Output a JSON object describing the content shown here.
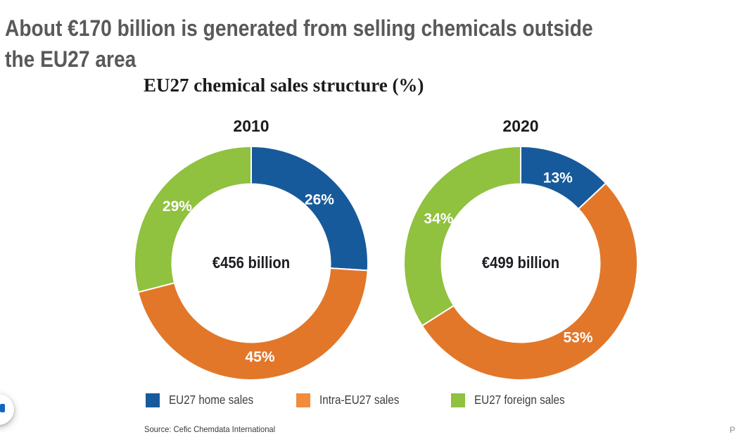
{
  "page": {
    "title_lines": {
      "line1": "About €170 billion is generated from selling chemicals outside",
      "line2": "the EU27 area"
    },
    "title_color": "#595959",
    "page_indicator": "P"
  },
  "chart": {
    "title": "EU27 chemical sales structure (%)",
    "source": "Source: Cefic Chemdata International",
    "legend": [
      {
        "label": "EU27 home sales",
        "color": "#175A9B"
      },
      {
        "label": "Intra-EU27 sales",
        "color": "#F18C3D"
      },
      {
        "label": "EU27 foreign sales",
        "color": "#90C13F"
      }
    ]
  },
  "chart_data": [
    {
      "type": "pie",
      "subtype": "donut",
      "title": "2010",
      "center_label": "€456 billion",
      "categories": [
        "EU27 home sales",
        "Intra-EU27 sales",
        "EU27 foreign sales"
      ],
      "values": [
        26,
        45,
        29
      ],
      "value_labels": [
        "26%",
        "45%",
        "29%"
      ],
      "colors": [
        "#175A9B",
        "#E2772A",
        "#90C13F"
      ],
      "start_angle_deg": 0,
      "direction": "clockwise"
    },
    {
      "type": "pie",
      "subtype": "donut",
      "title": "2020",
      "center_label": "€499 billion",
      "categories": [
        "EU27 home sales",
        "Intra-EU27 sales",
        "EU27 foreign sales"
      ],
      "values": [
        13,
        53,
        34
      ],
      "value_labels": [
        "13%",
        "53%",
        "34%"
      ],
      "colors": [
        "#175A9B",
        "#E2772A",
        "#90C13F"
      ],
      "start_angle_deg": 0,
      "direction": "clockwise"
    }
  ]
}
